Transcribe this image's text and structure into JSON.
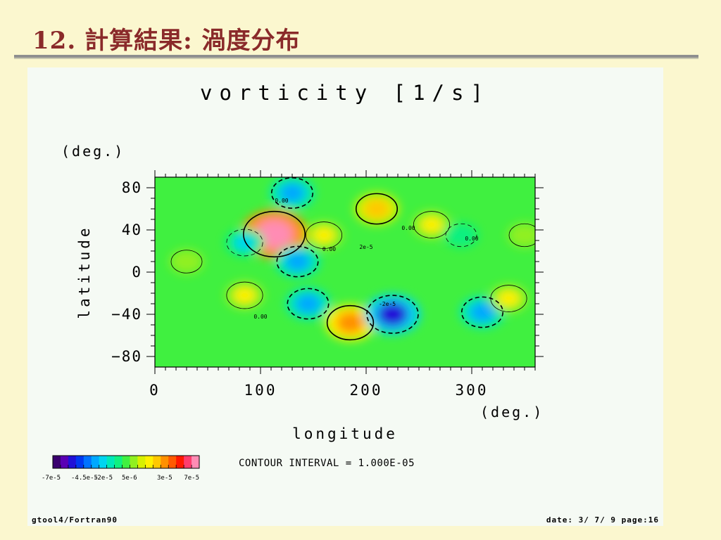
{
  "slide": {
    "number": "12.",
    "title": "計算結果: 渦度分布"
  },
  "chart_data": {
    "type": "heatmap",
    "title": "vorticity [1/s]",
    "xlabel": "longitude",
    "ylabel": "latitude",
    "x_unit": "(deg.)",
    "y_unit": "(deg.)",
    "xlim": [
      0,
      360
    ],
    "ylim": [
      -90,
      90
    ],
    "x_ticks": [
      0,
      100,
      200,
      300
    ],
    "y_ticks": [
      80,
      40,
      0,
      -40,
      -80
    ],
    "colorbar": {
      "min": -7e-05,
      "max": 7e-05,
      "tick_labels": [
        "-7e-5",
        "-4.5e-5",
        "-2e-5",
        "5e-6",
        "3e-5",
        "7e-5"
      ],
      "colors": [
        "#3a006e",
        "#5a00b4",
        "#2010d8",
        "#0038f0",
        "#0072ff",
        "#00a8ff",
        "#00d4f0",
        "#00e8b8",
        "#10f080",
        "#40f040",
        "#90f020",
        "#d8f000",
        "#fff000",
        "#ffc800",
        "#ff9000",
        "#ff5a00",
        "#ff1800",
        "#ff3c6e",
        "#ff8cb4"
      ]
    },
    "contour_interval_label": "CONTOUR INTERVAL = 1.000E-05",
    "contour_labels": [
      "0.00",
      "2e-5",
      "-2e-5"
    ],
    "features": [
      {
        "lon": 113,
        "lat": 36,
        "value": 7e-05
      },
      {
        "lon": 185,
        "lat": -48,
        "value": 4e-05
      },
      {
        "lon": 210,
        "lat": 60,
        "value": 3e-05
      },
      {
        "lon": 225,
        "lat": -40,
        "value": -5e-05
      },
      {
        "lon": 135,
        "lat": 10,
        "value": -3e-05
      },
      {
        "lon": 145,
        "lat": -30,
        "value": -3e-05
      },
      {
        "lon": 130,
        "lat": 75,
        "value": -3e-05
      },
      {
        "lon": 310,
        "lat": -38,
        "value": -3e-05
      },
      {
        "lon": 85,
        "lat": 28,
        "value": -2e-05
      },
      {
        "lon": 85,
        "lat": -22,
        "value": 2e-05
      },
      {
        "lon": 30,
        "lat": 10,
        "value": 1e-05
      },
      {
        "lon": 160,
        "lat": 35,
        "value": 2e-05
      },
      {
        "lon": 262,
        "lat": 45,
        "value": 2e-05
      },
      {
        "lon": 335,
        "lat": -25,
        "value": 2e-05
      },
      {
        "lon": 290,
        "lat": 35,
        "value": -1e-05
      },
      {
        "lon": 350,
        "lat": 35,
        "value": 1e-05
      }
    ]
  },
  "footer": {
    "left": "gtool4/Fortran90",
    "right": "date: 3/ 7/ 9 page:16"
  }
}
